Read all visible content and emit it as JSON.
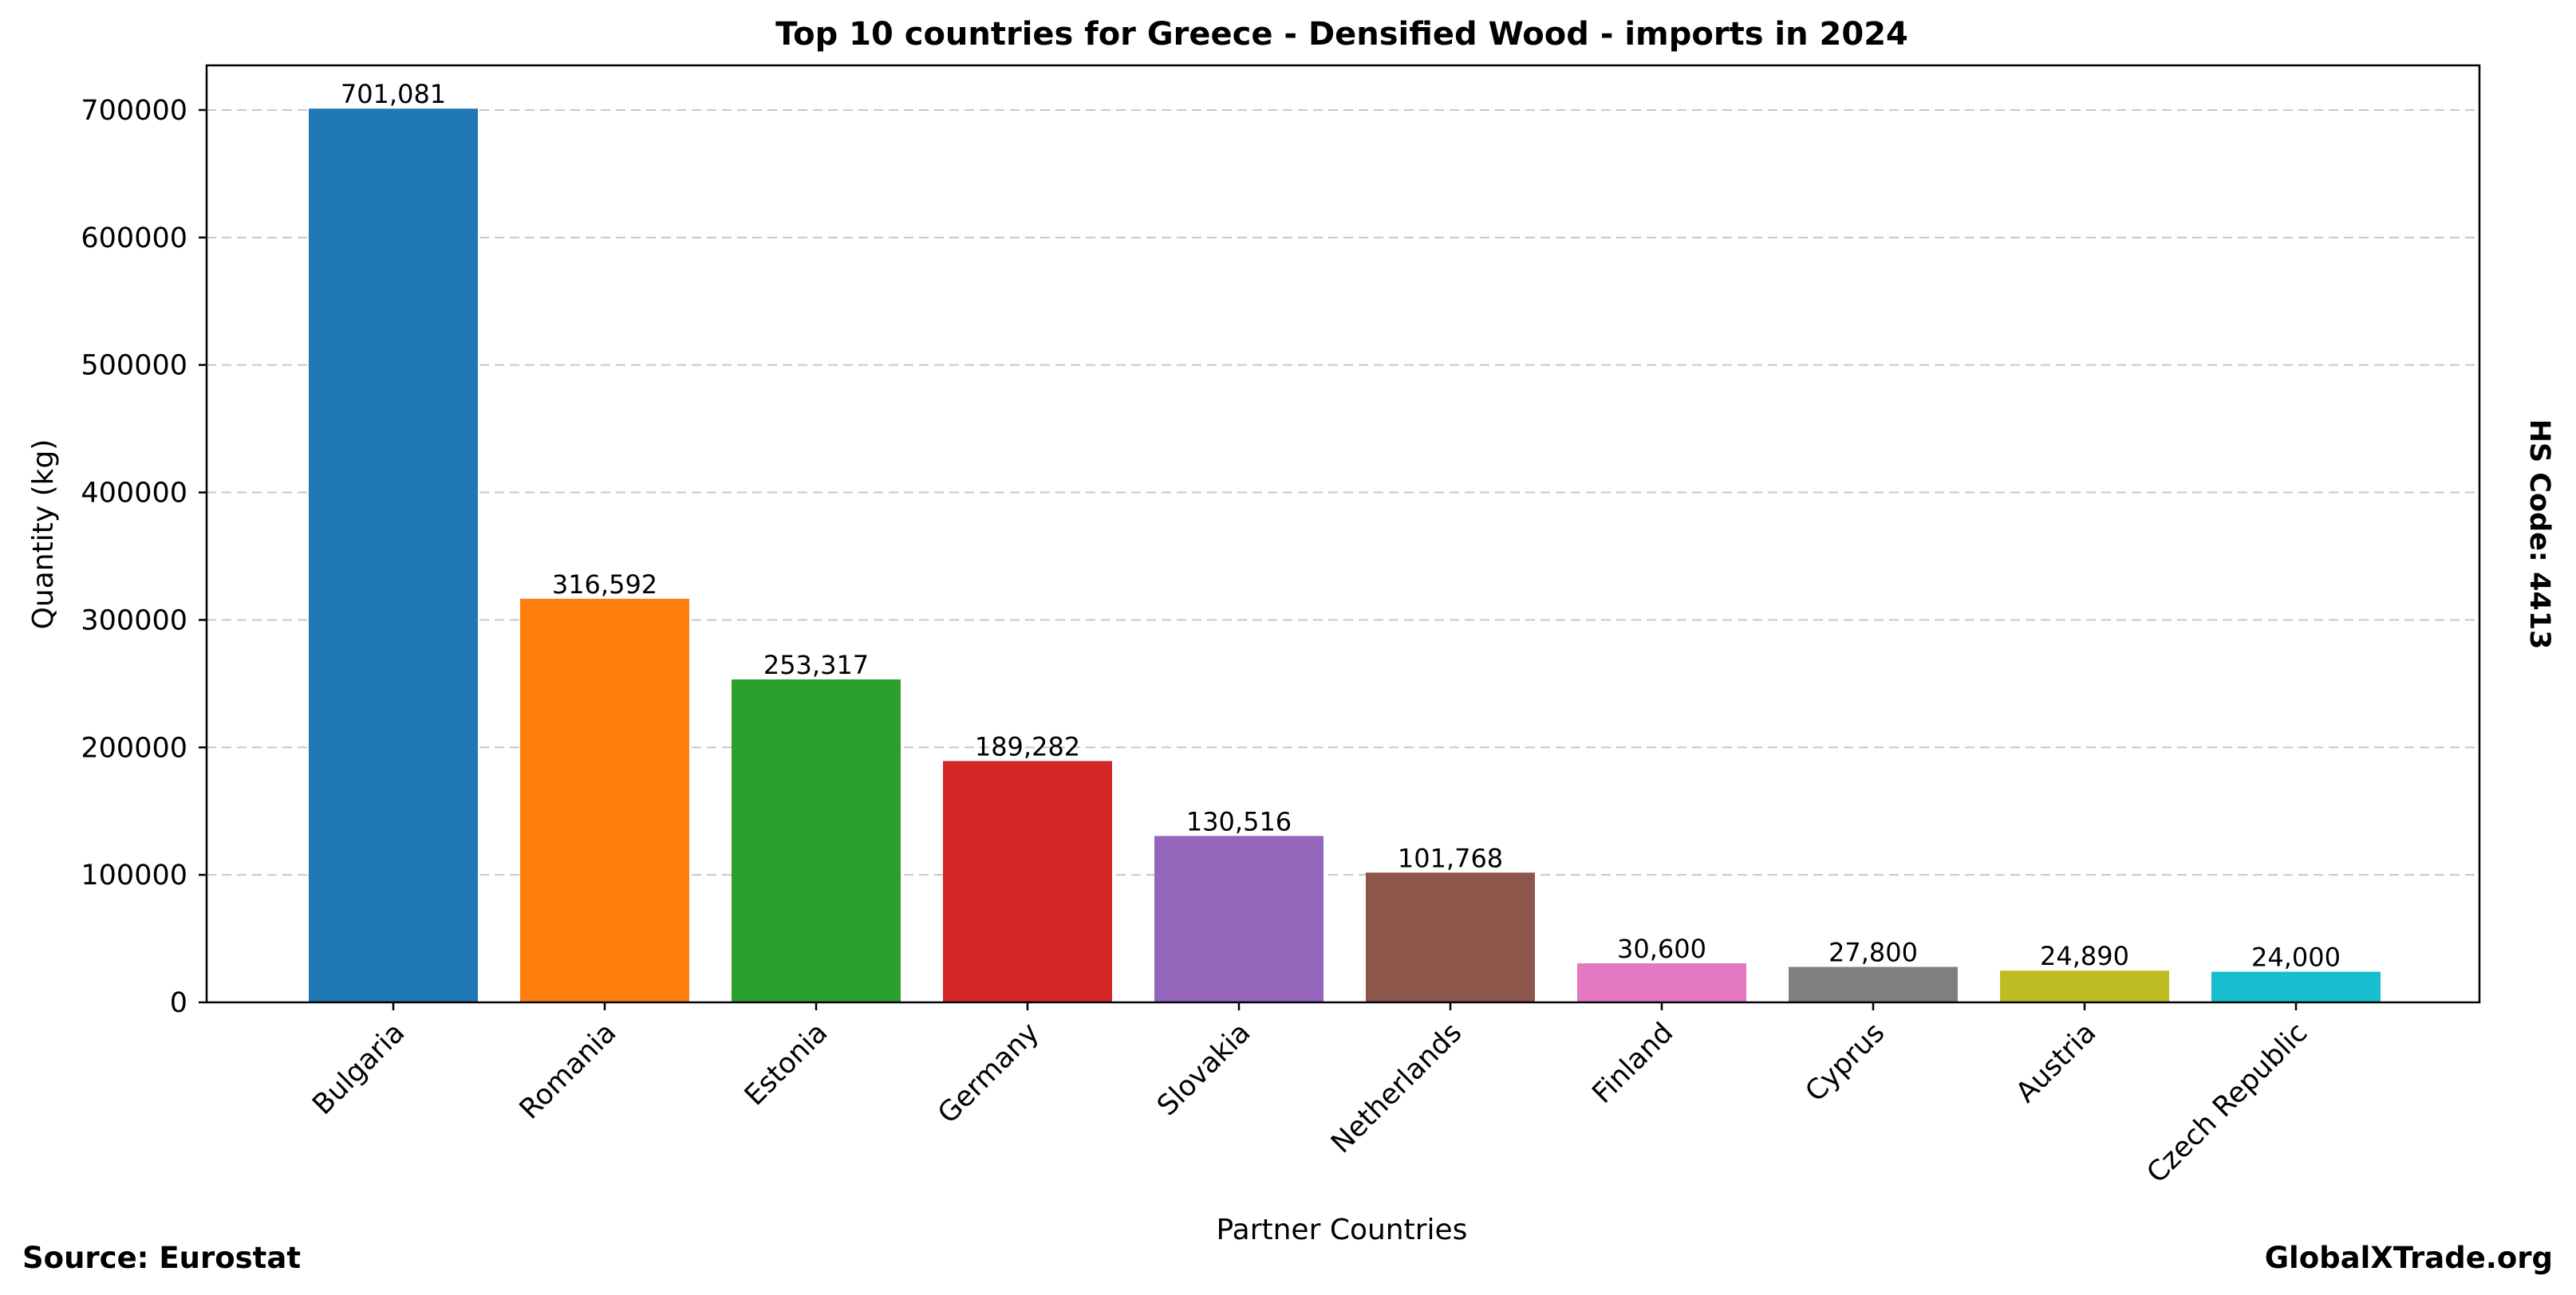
{
  "chart_data": {
    "type": "bar",
    "title": "Top 10 countries for Greece - Densified Wood - imports in 2024",
    "xlabel": "Partner Countries",
    "ylabel": "Quantity (kg)",
    "ylim": [
      0,
      735000
    ],
    "yticks": [
      0,
      100000,
      200000,
      300000,
      400000,
      500000,
      600000,
      700000
    ],
    "ytick_labels": [
      "0",
      "100000",
      "200000",
      "300000",
      "400000",
      "500000",
      "600000",
      "700000"
    ],
    "grid": true,
    "categories": [
      "Bulgaria",
      "Romania",
      "Estonia",
      "Germany",
      "Slovakia",
      "Netherlands",
      "Finland",
      "Cyprus",
      "Austria",
      "Czech Republic"
    ],
    "values": [
      701081,
      316592,
      253317,
      189282,
      130516,
      101768,
      30600,
      27800,
      24890,
      24000
    ],
    "data_labels": [
      "701,081",
      "316,592",
      "253,317",
      "189,282",
      "130,516",
      "101,768",
      "30,600",
      "27,800",
      "24,890",
      "24,000"
    ],
    "colors": [
      "#1f77b4",
      "#ff7f0e",
      "#2ca02c",
      "#d62728",
      "#9467bd",
      "#8c564b",
      "#e377c2",
      "#7f7f7f",
      "#bcbd22",
      "#17becf"
    ]
  },
  "side_note": "HS Code: 4413",
  "footer": {
    "source": "Source: Eurostat",
    "brand": "GlobalXTrade.org"
  }
}
